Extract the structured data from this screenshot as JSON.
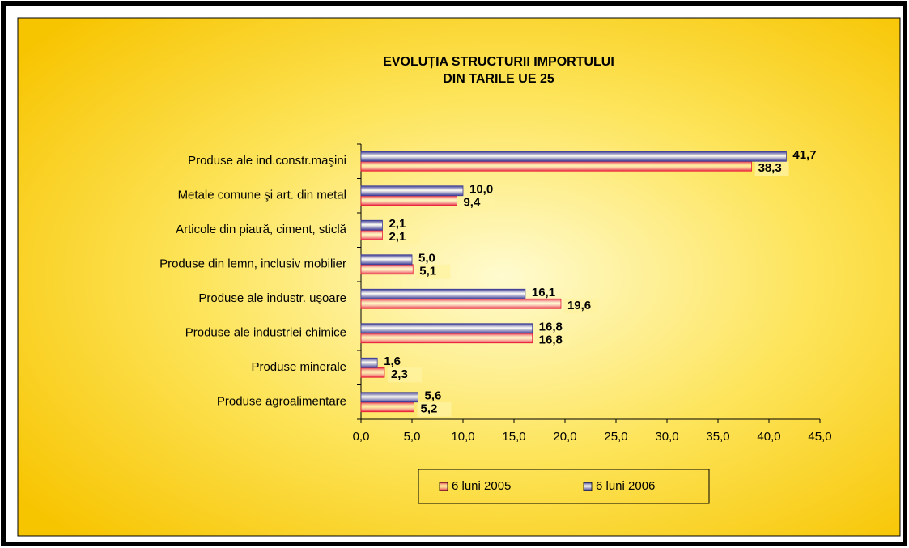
{
  "chart_data": {
    "type": "bar",
    "orientation": "horizontal",
    "title": [
      "EVOLUȚIA  STRUCTURII  IMPORTULUI",
      "DIN TARILE UE 25"
    ],
    "categories": [
      "Produse ale ind.constr.maşini",
      "Metale comune şi art. din metal",
      "Articole din piatră, ciment, sticlă",
      "Produse din lemn, inclusiv mobilier",
      "Produse ale industr. uşoare",
      "Produse ale industriei chimice",
      "Produse minerale",
      "Produse agroalimentare"
    ],
    "series": [
      {
        "name": "6 luni 2005",
        "color": "#e8203a",
        "values": [
          38.3,
          9.4,
          2.1,
          5.1,
          19.6,
          16.8,
          2.3,
          5.2
        ],
        "value_labels": [
          "38,3",
          "9,4",
          "2,1",
          "5,1",
          "19,6",
          "16,8",
          "2,3",
          "5,2"
        ]
      },
      {
        "name": "6 luni 2006",
        "color": "#3c3c96",
        "values": [
          41.7,
          10.0,
          2.1,
          5.0,
          16.1,
          16.8,
          1.6,
          5.6
        ],
        "value_labels": [
          "41,7",
          "10,0",
          "2,1",
          "5,0",
          "16,1",
          "16,8",
          "1,6",
          "5,6"
        ]
      }
    ],
    "xlim": [
      0,
      45
    ],
    "xticks": [
      {
        "value": 0,
        "label": "0,0"
      },
      {
        "value": 5,
        "label": "5,0"
      },
      {
        "value": 10,
        "label": "10,0"
      },
      {
        "value": 15,
        "label": "15,0"
      },
      {
        "value": 20,
        "label": "20,0"
      },
      {
        "value": 25,
        "label": "25,0"
      },
      {
        "value": 30,
        "label": "30,0"
      },
      {
        "value": 35,
        "label": "35,0"
      },
      {
        "value": 40,
        "label": "40,0"
      },
      {
        "value": 45,
        "label": "45,0"
      }
    ],
    "legend": "bottom"
  }
}
